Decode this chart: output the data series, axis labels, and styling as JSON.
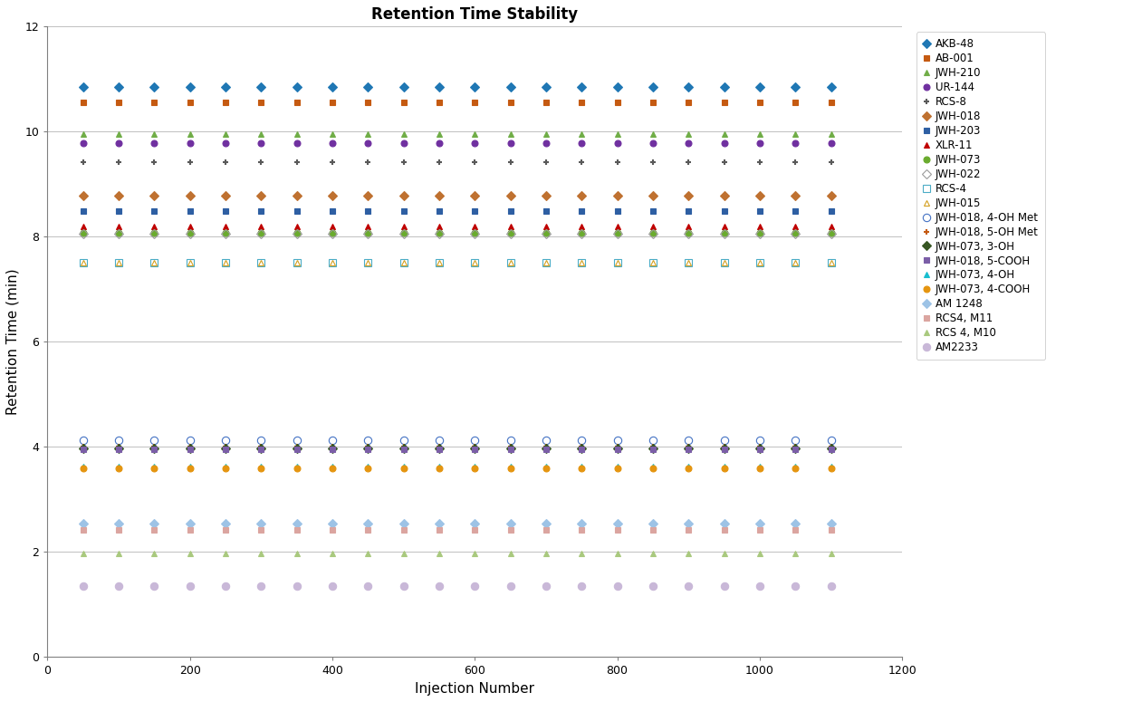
{
  "title": "Retention Time Stability",
  "xlabel": "Injection Number",
  "ylabel": "Retention Time (min)",
  "xlim": [
    0,
    1200
  ],
  "ylim": [
    0,
    12
  ],
  "yticks": [
    0,
    2,
    4,
    6,
    8,
    10,
    12
  ],
  "xticks": [
    0,
    200,
    400,
    600,
    800,
    1000,
    1200
  ],
  "injection_numbers": [
    50,
    100,
    150,
    200,
    250,
    300,
    350,
    400,
    450,
    500,
    550,
    600,
    650,
    700,
    750,
    800,
    850,
    900,
    950,
    1000,
    1050,
    1100
  ],
  "series": [
    {
      "name": "AKB-48",
      "rt": 10.85,
      "color": "#1F77B4",
      "marker": "D",
      "markersize": 5,
      "filled": true
    },
    {
      "name": "AB-001",
      "rt": 10.55,
      "color": "#C55A11",
      "marker": "s",
      "markersize": 5,
      "filled": true
    },
    {
      "name": "JWH-210",
      "rt": 9.95,
      "color": "#70AD47",
      "marker": "^",
      "markersize": 5,
      "filled": true
    },
    {
      "name": "UR-144",
      "rt": 9.78,
      "color": "#7030A0",
      "marker": "o",
      "markersize": 5,
      "filled": true
    },
    {
      "name": "RCS-8",
      "rt": 9.42,
      "color": "#595959",
      "marker": "P",
      "markersize": 5,
      "filled": true
    },
    {
      "name": "JWH-018",
      "rt": 8.78,
      "color": "#BF7130",
      "marker": "D",
      "markersize": 5,
      "filled": true
    },
    {
      "name": "JWH-203",
      "rt": 8.48,
      "color": "#2E5FA3",
      "marker": "s",
      "markersize": 5,
      "filled": true
    },
    {
      "name": "XLR-11",
      "rt": 8.2,
      "color": "#C00000",
      "marker": "^",
      "markersize": 5,
      "filled": true
    },
    {
      "name": "JWH-073",
      "rt": 8.08,
      "color": "#6AAB2E",
      "marker": "o",
      "markersize": 5,
      "filled": true
    },
    {
      "name": "JWH-022",
      "rt": 8.05,
      "color": "#9B9B9B",
      "marker": "D",
      "markersize": 5,
      "filled": false
    },
    {
      "name": "RCS-4",
      "rt": 7.5,
      "color": "#4BACC6",
      "marker": "s",
      "markersize": 6,
      "filled": false
    },
    {
      "name": "JWH-015",
      "rt": 7.5,
      "color": "#D4A020",
      "marker": "^",
      "markersize": 5,
      "filled": false
    },
    {
      "name": "JWH-018, 4-OH Met",
      "rt": 4.12,
      "color": "#4472C4",
      "marker": "o",
      "markersize": 6,
      "filled": false
    },
    {
      "name": "JWH-018, 5-OH Met",
      "rt": 4.0,
      "color": "#C55A11",
      "marker": "P",
      "markersize": 5,
      "filled": true
    },
    {
      "name": "JWH-073, 3-OH",
      "rt": 3.97,
      "color": "#375623",
      "marker": "D",
      "markersize": 5,
      "filled": true
    },
    {
      "name": "JWH-018, 5-COOH",
      "rt": 3.95,
      "color": "#7B5EA7",
      "marker": "s",
      "markersize": 5,
      "filled": true
    },
    {
      "name": "JWH-073, 4-OH",
      "rt": 3.62,
      "color": "#17BECF",
      "marker": "^",
      "markersize": 5,
      "filled": true
    },
    {
      "name": "JWH-073, 4-COOH",
      "rt": 3.6,
      "color": "#E59510",
      "marker": "o",
      "markersize": 5,
      "filled": true
    },
    {
      "name": "AM 1248",
      "rt": 2.55,
      "color": "#9DC3E6",
      "marker": "D",
      "markersize": 5,
      "filled": true
    },
    {
      "name": "RCS4, M11",
      "rt": 2.42,
      "color": "#DBA5A0",
      "marker": "s",
      "markersize": 5,
      "filled": true
    },
    {
      "name": "RCS 4, M10",
      "rt": 1.97,
      "color": "#A9C97E",
      "marker": "^",
      "markersize": 5,
      "filled": true
    },
    {
      "name": "AM2233",
      "rt": 1.35,
      "color": "#C9B8D8",
      "marker": "o",
      "markersize": 6,
      "filled": true
    }
  ],
  "figsize": [
    12.61,
    7.75
  ],
  "dpi": 100
}
